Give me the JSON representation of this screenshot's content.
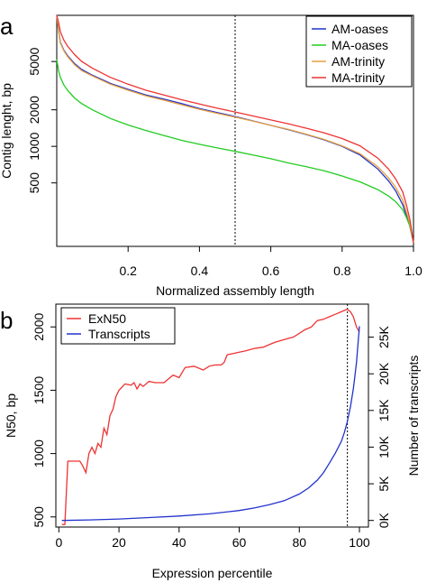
{
  "chart_data": [
    {
      "panel": "a",
      "type": "line",
      "xlabel": "Normalized assembly length",
      "ylabel": "Contig lenght, bp",
      "xlim": [
        0,
        1
      ],
      "ylim": [
        150,
        12000
      ],
      "yscale": "log",
      "x_ticks": [
        0.2,
        0.4,
        0.6,
        0.8,
        1.0
      ],
      "x_tick_labels": [
        "0.2",
        "0.4",
        "0.6",
        "0.8",
        "1.0"
      ],
      "y_ticks": [
        500,
        1000,
        2000,
        5000
      ],
      "y_tick_labels": [
        "500",
        "1000",
        "2000",
        "5000"
      ],
      "vline": 0.5,
      "legend_position": "top-right",
      "series": [
        {
          "name": "AM-oases",
          "color": "#2233cc",
          "x": [
            0,
            0.005,
            0.01,
            0.02,
            0.03,
            0.05,
            0.07,
            0.1,
            0.15,
            0.2,
            0.25,
            0.3,
            0.35,
            0.4,
            0.45,
            0.5,
            0.55,
            0.6,
            0.65,
            0.7,
            0.75,
            0.8,
            0.85,
            0.9,
            0.93,
            0.95,
            0.97,
            0.98,
            0.99,
            1.0
          ],
          "y": [
            13000,
            9000,
            7200,
            6200,
            5600,
            4800,
            4300,
            3850,
            3300,
            2950,
            2650,
            2450,
            2250,
            2050,
            1900,
            1760,
            1620,
            1490,
            1370,
            1250,
            1130,
            1000,
            850,
            650,
            520,
            430,
            330,
            270,
            220,
            160
          ]
        },
        {
          "name": "MA-oases",
          "color": "#22cc22",
          "x": [
            0,
            0.005,
            0.01,
            0.02,
            0.03,
            0.05,
            0.07,
            0.1,
            0.15,
            0.2,
            0.25,
            0.3,
            0.35,
            0.4,
            0.45,
            0.5,
            0.55,
            0.6,
            0.65,
            0.7,
            0.75,
            0.8,
            0.85,
            0.9,
            0.93,
            0.95,
            0.97,
            0.98,
            0.99,
            1.0
          ],
          "y": [
            5200,
            4200,
            3700,
            3200,
            2900,
            2500,
            2250,
            2000,
            1700,
            1500,
            1350,
            1230,
            1120,
            1040,
            970,
            910,
            850,
            790,
            730,
            680,
            630,
            570,
            510,
            440,
            390,
            350,
            300,
            260,
            220,
            160
          ]
        },
        {
          "name": "AM-trinity",
          "color": "#e8a040",
          "x": [
            0,
            0.005,
            0.01,
            0.02,
            0.03,
            0.05,
            0.07,
            0.1,
            0.15,
            0.2,
            0.25,
            0.3,
            0.35,
            0.4,
            0.45,
            0.5,
            0.55,
            0.6,
            0.65,
            0.7,
            0.75,
            0.8,
            0.85,
            0.9,
            0.93,
            0.95,
            0.97,
            0.98,
            0.99,
            1.0
          ],
          "y": [
            12500,
            8800,
            7100,
            6100,
            5500,
            4700,
            4200,
            3800,
            3250,
            2900,
            2600,
            2400,
            2200,
            2020,
            1870,
            1740,
            1610,
            1490,
            1380,
            1260,
            1140,
            1010,
            870,
            680,
            550,
            460,
            360,
            290,
            230,
            160
          ]
        },
        {
          "name": "MA-trinity",
          "color": "#ee3333",
          "x": [
            0,
            0.005,
            0.01,
            0.02,
            0.03,
            0.05,
            0.07,
            0.1,
            0.15,
            0.2,
            0.25,
            0.3,
            0.35,
            0.4,
            0.45,
            0.5,
            0.55,
            0.6,
            0.65,
            0.7,
            0.75,
            0.8,
            0.85,
            0.9,
            0.93,
            0.95,
            0.97,
            0.98,
            0.99,
            1.0
          ],
          "y": [
            14000,
            10500,
            8800,
            7500,
            6700,
            5700,
            5000,
            4400,
            3700,
            3250,
            2900,
            2650,
            2420,
            2230,
            2060,
            1920,
            1780,
            1650,
            1530,
            1410,
            1290,
            1160,
            1010,
            800,
            650,
            540,
            420,
            330,
            250,
            160
          ]
        }
      ]
    },
    {
      "panel": "b",
      "type": "line",
      "xlabel": "Expression percentile",
      "ylabel": "N50, bp",
      "ylabel_right": "Number of transcripts",
      "xlim": [
        -1,
        103
      ],
      "ylim": [
        420,
        2180
      ],
      "ylim_right": [
        -900,
        29500
      ],
      "x_ticks": [
        0,
        20,
        40,
        60,
        80,
        100
      ],
      "x_tick_labels": [
        "0",
        "20",
        "40",
        "60",
        "80",
        "100"
      ],
      "y_ticks": [
        500,
        1000,
        1500,
        2000
      ],
      "y_tick_labels": [
        "500",
        "1000",
        "1500",
        "2000"
      ],
      "y_ticks_right": [
        0,
        5000,
        10000,
        15000,
        20000,
        25000
      ],
      "y_tick_labels_right": [
        "0K",
        "5K",
        "10K",
        "15K",
        "20K",
        "25K"
      ],
      "vline": 96,
      "legend_position": "top-left",
      "series": [
        {
          "name": "ExN50",
          "color": "#ee3333",
          "axis": "left",
          "x": [
            1,
            2,
            3,
            5,
            7,
            8,
            9,
            10,
            11,
            12,
            13,
            14,
            15,
            16,
            17,
            18,
            19,
            20,
            22,
            24,
            25,
            26,
            27,
            28,
            30,
            32,
            35,
            38,
            40,
            42,
            45,
            48,
            50,
            52,
            54,
            55,
            56,
            58,
            60,
            62,
            65,
            68,
            70,
            72,
            75,
            78,
            80,
            82,
            84,
            86,
            88,
            90,
            92,
            94,
            95,
            96,
            97,
            98,
            99,
            100
          ],
          "y": [
            440,
            440,
            940,
            940,
            940,
            900,
            850,
            1000,
            1050,
            1000,
            1080,
            1050,
            1200,
            1150,
            1300,
            1350,
            1450,
            1500,
            1550,
            1540,
            1560,
            1510,
            1550,
            1530,
            1570,
            1560,
            1560,
            1620,
            1600,
            1680,
            1690,
            1660,
            1690,
            1700,
            1700,
            1720,
            1780,
            1790,
            1800,
            1810,
            1830,
            1840,
            1860,
            1880,
            1900,
            1920,
            1950,
            1980,
            2000,
            2050,
            2060,
            2080,
            2100,
            2120,
            2130,
            2140,
            2120,
            2080,
            2000,
            1960
          ]
        },
        {
          "name": "Transcripts",
          "color": "#2233cc",
          "axis": "right",
          "x": [
            1,
            10,
            20,
            30,
            40,
            50,
            60,
            65,
            70,
            75,
            80,
            83,
            86,
            88,
            90,
            92,
            94,
            95,
            96,
            97,
            98,
            99,
            100
          ],
          "y": [
            0,
            70,
            200,
            390,
            600,
            900,
            1350,
            1700,
            2150,
            2700,
            3600,
            4400,
            5500,
            6500,
            7800,
            9200,
            10800,
            12000,
            13500,
            15500,
            18000,
            21500,
            26500
          ]
        }
      ]
    }
  ]
}
